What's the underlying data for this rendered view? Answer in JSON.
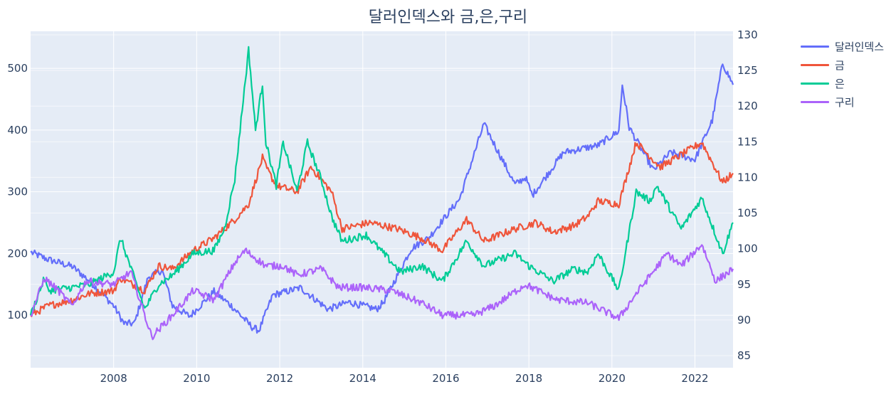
{
  "chart_data": {
    "type": "line",
    "title": "달러인덱스와 금,은,구리",
    "x_ticks": [
      "2008",
      "2010",
      "2012",
      "2014",
      "2016",
      "2018",
      "2020",
      "2022"
    ],
    "x_range": [
      "2006-01",
      "2022-12"
    ],
    "y_left": {
      "range": [
        15,
        560
      ],
      "ticks": [
        100,
        200,
        300,
        400,
        500
      ]
    },
    "y_right": {
      "range": [
        83.3,
        130.5
      ],
      "ticks": [
        85,
        90,
        95,
        100,
        105,
        110,
        115,
        120,
        125,
        130
      ]
    },
    "grid": true,
    "legend_position": "right",
    "series": [
      {
        "name": "달러인덱스",
        "axis": "right",
        "color": "#636efa",
        "x": [
          "2006-01",
          "2006-06",
          "2007-01",
          "2007-06",
          "2008-01",
          "2008-04",
          "2008-07",
          "2008-11",
          "2009-03",
          "2009-06",
          "2009-11",
          "2010-06",
          "2010-11",
          "2011-05",
          "2011-07",
          "2011-11",
          "2012-07",
          "2013-03",
          "2013-09",
          "2014-05",
          "2014-07",
          "2015-03",
          "2015-08",
          "2016-05",
          "2016-12",
          "2017-09",
          "2017-12",
          "2018-02",
          "2018-11",
          "2019-09",
          "2020-03",
          "2020-04",
          "2020-06",
          "2021-01",
          "2021-06",
          "2022-01",
          "2022-06",
          "2022-09",
          "2022-11",
          "2022-12"
        ],
        "y": [
          99.5,
          98.5,
          97.5,
          95.5,
          92.0,
          89.5,
          89.5,
          96.0,
          97.0,
          92.0,
          90.5,
          94.0,
          92.0,
          89.0,
          88.5,
          93.5,
          94.5,
          91.5,
          92.5,
          91.5,
          92.5,
          100.0,
          101.5,
          107.0,
          117.5,
          109.0,
          110.0,
          107.5,
          113.5,
          114.5,
          116.5,
          123.0,
          117.0,
          111.0,
          113.5,
          112.5,
          118.0,
          126.0,
          124.0,
          123.0
        ]
      },
      {
        "name": "금",
        "axis": "left",
        "color": "#ef553b",
        "x": [
          "2006-01",
          "2006-06",
          "2007-01",
          "2007-06",
          "2008-01",
          "2008-03",
          "2008-10",
          "2009-02",
          "2009-06",
          "2009-12",
          "2010-06",
          "2010-12",
          "2011-04",
          "2011-08",
          "2011-09",
          "2011-12",
          "2012-06",
          "2012-10",
          "2013-04",
          "2013-07",
          "2014-03",
          "2014-11",
          "2015-06",
          "2015-12",
          "2016-07",
          "2016-12",
          "2017-09",
          "2018-03",
          "2018-08",
          "2019-02",
          "2019-06",
          "2019-09",
          "2020-03",
          "2020-08",
          "2021-03",
          "2021-06",
          "2022-03",
          "2022-09",
          "2022-12"
        ],
        "y": [
          100,
          115,
          125,
          135,
          140,
          160,
          140,
          180,
          175,
          205,
          225,
          255,
          280,
          355,
          340,
          310,
          300,
          340,
          300,
          240,
          250,
          240,
          225,
          205,
          255,
          220,
          240,
          250,
          235,
          245,
          260,
          285,
          280,
          380,
          340,
          350,
          380,
          315,
          330
        ]
      },
      {
        "name": "은",
        "axis": "left",
        "color": "#00cc96",
        "x": [
          "2006-01",
          "2006-05",
          "2006-06",
          "2007-01",
          "2007-06",
          "2008-01",
          "2008-03",
          "2008-10",
          "2009-02",
          "2009-06",
          "2009-12",
          "2010-06",
          "2010-09",
          "2010-12",
          "2011-04",
          "2011-06",
          "2011-08",
          "2011-09",
          "2011-12",
          "2012-02",
          "2012-06",
          "2012-09",
          "2013-01",
          "2013-04",
          "2013-07",
          "2014-02",
          "2014-12",
          "2015-06",
          "2015-12",
          "2016-07",
          "2016-12",
          "2017-09",
          "2018-01",
          "2018-08",
          "2019-02",
          "2019-06",
          "2019-09",
          "2020-03",
          "2020-08",
          "2020-12",
          "2021-02",
          "2021-09",
          "2022-03",
          "2022-09",
          "2022-12"
        ],
        "y": [
          100,
          160,
          140,
          145,
          150,
          170,
          225,
          110,
          150,
          165,
          200,
          205,
          240,
          320,
          530,
          400,
          475,
          380,
          310,
          380,
          300,
          380,
          320,
          260,
          220,
          230,
          170,
          180,
          155,
          220,
          180,
          200,
          180,
          155,
          175,
          170,
          200,
          140,
          300,
          285,
          310,
          240,
          290,
          200,
          250
        ]
      },
      {
        "name": "구리",
        "axis": "left",
        "color": "#ab63fa",
        "x": [
          "2006-01",
          "2006-05",
          "2006-09",
          "2007-01",
          "2007-05",
          "2008-01",
          "2008-06",
          "2008-12",
          "2009-06",
          "2009-12",
          "2010-06",
          "2010-12",
          "2011-03",
          "2011-09",
          "2012-02",
          "2012-06",
          "2013-01",
          "2013-06",
          "2014-01",
          "2014-09",
          "2015-06",
          "2015-12",
          "2016-09",
          "2017-03",
          "2017-12",
          "2018-09",
          "2019-06",
          "2020-03",
          "2020-08",
          "2021-05",
          "2021-09",
          "2022-03",
          "2022-07",
          "2022-12"
        ],
        "y": [
          100,
          160,
          140,
          115,
          155,
          150,
          170,
          65,
          100,
          140,
          125,
          185,
          205,
          180,
          180,
          165,
          175,
          145,
          145,
          140,
          120,
          100,
          100,
          115,
          150,
          125,
          120,
          95,
          135,
          200,
          180,
          215,
          155,
          175
        ]
      }
    ]
  }
}
